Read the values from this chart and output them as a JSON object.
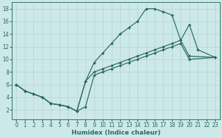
{
  "xlabel": "Humidex (Indice chaleur)",
  "bg_color": "#cce8e8",
  "grid_color": "#b8d4d4",
  "line_color": "#2a6b5e",
  "xlim": [
    -0.5,
    23.5
  ],
  "ylim": [
    0.5,
    19
  ],
  "xticks": [
    0,
    1,
    2,
    3,
    4,
    5,
    6,
    7,
    8,
    9,
    10,
    11,
    12,
    13,
    14,
    15,
    16,
    17,
    18,
    19,
    20,
    21,
    22,
    23
  ],
  "yticks": [
    2,
    4,
    6,
    8,
    10,
    12,
    14,
    16,
    18
  ],
  "series1_x": [
    0,
    1,
    2,
    3,
    4,
    5,
    6,
    7,
    8,
    9,
    10,
    11,
    12,
    13,
    14,
    15,
    16,
    17,
    18,
    19,
    20,
    21,
    23
  ],
  "series1_y": [
    6,
    5,
    4.5,
    4,
    3,
    2.8,
    2.5,
    1.8,
    6.5,
    9.5,
    11,
    12.5,
    14,
    15,
    16,
    18,
    18,
    17.5,
    17,
    13,
    15.5,
    11.5,
    10.3
  ],
  "series2_x": [
    0,
    1,
    2,
    3,
    4,
    5,
    6,
    7,
    8,
    9,
    10,
    11,
    12,
    13,
    14,
    15,
    16,
    17,
    18,
    19,
    20,
    23
  ],
  "series2_y": [
    6,
    5,
    4.5,
    4,
    3,
    2.8,
    2.5,
    1.8,
    6.5,
    8.0,
    8.5,
    9.0,
    9.5,
    10.0,
    10.5,
    11.0,
    11.5,
    12.0,
    12.5,
    13.0,
    10.5,
    10.3
  ],
  "series3_x": [
    0,
    1,
    2,
    3,
    4,
    5,
    6,
    7,
    8,
    9,
    10,
    11,
    12,
    13,
    14,
    15,
    16,
    17,
    18,
    19,
    20,
    23
  ],
  "series3_y": [
    6,
    5,
    4.5,
    4,
    3,
    2.8,
    2.5,
    1.8,
    2.5,
    7.5,
    8.0,
    8.5,
    9.0,
    9.5,
    10.0,
    10.5,
    11.0,
    11.5,
    12.0,
    12.5,
    10.0,
    10.3
  ]
}
